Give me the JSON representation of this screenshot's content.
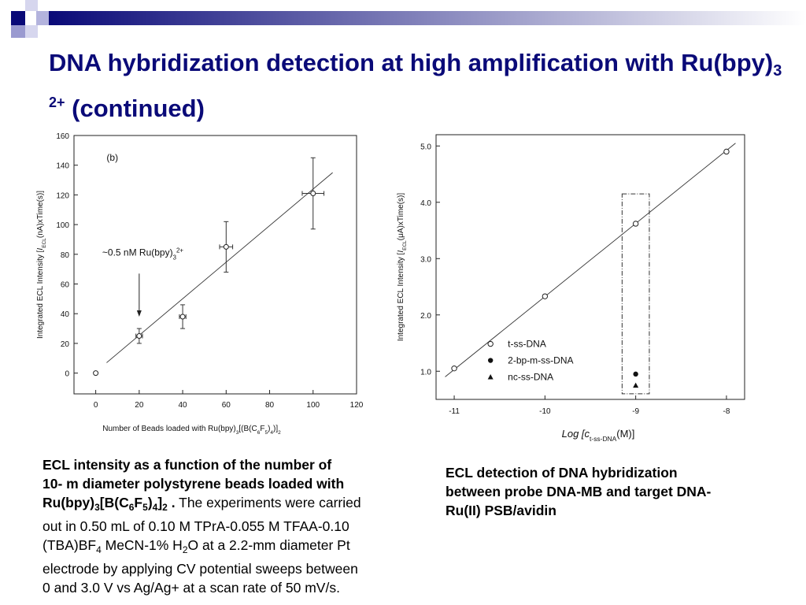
{
  "slide": {
    "title_main": "DNA hybridization detection at high amplification with Ru(bpy)",
    "title_sub": "3",
    "title_sup": "2+",
    "title_end": " (continued)"
  },
  "decor": {
    "squares": [
      "#0a0a78",
      "#b3b3dd",
      "#d6d6ee",
      "#9a9ad0"
    ],
    "bar_start": "#0a0a78",
    "bar_end": "#ffffff"
  },
  "chart_data": [
    {
      "type": "scatter",
      "panel_label": "(b)",
      "xlabel_parts": [
        "Number of Beads loaded with Ru(bpy)",
        "3",
        "[(B(C",
        "6",
        "F",
        "5",
        ")",
        "4",
        ")]",
        "2"
      ],
      "ylabel_parts": [
        "Integrated ECL Intensity [",
        "I",
        "ECL",
        "(nA)xTime(s)]"
      ],
      "xlim": [
        -10,
        120
      ],
      "ylim": [
        -14,
        160
      ],
      "xticks": [
        0,
        20,
        40,
        60,
        80,
        100,
        120
      ],
      "yticks": [
        0,
        20,
        40,
        60,
        80,
        100,
        120,
        140,
        160
      ],
      "points": [
        {
          "x": 0,
          "y": 0,
          "yerr": 0,
          "xerr": 0
        },
        {
          "x": 20,
          "y": 25,
          "yerr": 5,
          "xerr": 1.5
        },
        {
          "x": 40,
          "y": 38,
          "yerr": 8,
          "xerr": 1.5
        },
        {
          "x": 60,
          "y": 85,
          "yerr": 17,
          "xerr": 3
        },
        {
          "x": 100,
          "y": 121,
          "yerr": 24,
          "xerr": 5
        }
      ],
      "fit_line": [
        [
          5,
          7
        ],
        [
          109,
          135
        ]
      ],
      "annotation": {
        "text": "~0.5 nM Ru(bpy)",
        "sub": "3",
        "sup": "2+",
        "arrow_x": 20,
        "arrow_from_y": 67,
        "arrow_to_y": 38
      },
      "grid": false
    },
    {
      "type": "scatter",
      "xlabel_parts": [
        "Log [",
        "c",
        "t-ss-DNA",
        "(M)]"
      ],
      "ylabel_parts": [
        "Integrated ECL Intensity [",
        "I",
        "ECL",
        "(μA)xTime(s)]"
      ],
      "xlim": [
        -11.2,
        -7.8
      ],
      "ylim": [
        0.5,
        5.2
      ],
      "xticks": [
        -11,
        -10,
        -9,
        -8
      ],
      "yticks": [
        1.0,
        2.0,
        3.0,
        4.0,
        5.0
      ],
      "ytick_labels": [
        "1.0",
        "2.0",
        "3.0",
        "4.0",
        "5.0"
      ],
      "series": [
        {
          "name": "t-ss-DNA",
          "marker": "open-circle",
          "x": [
            -11,
            -10,
            -9,
            -8
          ],
          "y": [
            1.05,
            2.33,
            3.62,
            4.9
          ]
        },
        {
          "name": "2-bp-m-ss-DNA",
          "marker": "filled-circle",
          "x": [
            -9
          ],
          "y": [
            0.95
          ]
        },
        {
          "name": "nc-ss-DNA",
          "marker": "filled-triangle",
          "x": [
            -9
          ],
          "y": [
            0.75
          ]
        }
      ],
      "fit_line": [
        [
          -11.1,
          0.9
        ],
        [
          -7.9,
          5.05
        ]
      ],
      "highlight_box": {
        "x": [
          -9.15,
          -8.85
        ],
        "y": [
          0.6,
          4.15
        ]
      },
      "legend": "lower-center",
      "grid": false
    }
  ],
  "captions": {
    "left": {
      "bold1": "ECL intensity as a function of the number of",
      "bold2": "10- m diameter polystyrene beads loaded with",
      "bold3_a": "Ru(bpy)",
      "bold3_b": "3",
      "bold3_c": "[B(C",
      "bold3_d": "6",
      "bold3_e": "F",
      "bold3_f": "5",
      "bold3_g": ")",
      "bold3_h": "4",
      "bold3_i": "]",
      "bold3_j": "2",
      "bold3_k": " .",
      "normal1": " The experiments were carried",
      "normal2": "out in 0.50 mL of 0.10 M TPrA-0.055 M TFAA-0.10",
      "normal3_a": "(TBA)BF",
      "normal3_b": "4",
      "normal3_c": " MeCN-1% H",
      "normal3_d": "2",
      "normal3_e": "O at a 2.2-mm diameter Pt",
      "normal4": "electrode by applying CV potential sweeps between",
      "normal5": "0 and 3.0 V vs Ag/Ag+ at a scan rate of 50 mV/s."
    },
    "right": {
      "line1": "ECL detection of DNA hybridization",
      "line2": "between probe DNA-MB and target DNA-",
      "line3": "Ru(II) PSB/avidin"
    }
  }
}
